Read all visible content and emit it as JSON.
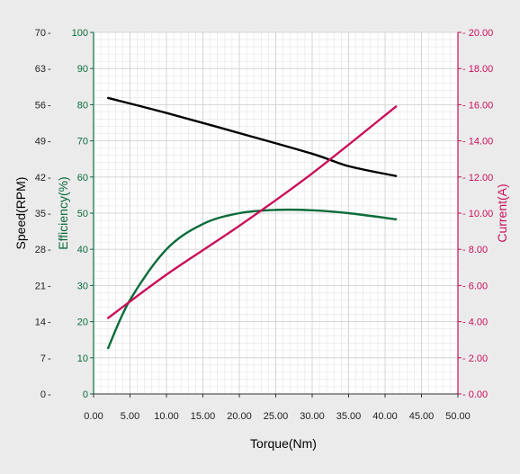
{
  "chart_data": {
    "type": "line",
    "title": "",
    "xlabel": "Torque(Nm)",
    "xlim": [
      0,
      50
    ],
    "x_ticks": [
      "0.00",
      "5.00",
      "10.00",
      "15.00",
      "20.00",
      "25.00",
      "30.00",
      "35.00",
      "40.00",
      "45.00",
      "50.00"
    ],
    "grid": true,
    "legend": "none",
    "axes": {
      "speed": {
        "label": "Speed(RPM)",
        "color": "#000000",
        "ylim": [
          0,
          70
        ],
        "ticks": [
          "0",
          "7",
          "14",
          "21",
          "28",
          "35",
          "42",
          "49",
          "56",
          "63",
          "70"
        ]
      },
      "efficiency": {
        "label": "Efficiency(%)",
        "color": "#0b6b3a",
        "ylim": [
          0,
          100
        ],
        "ticks": [
          "0",
          "10",
          "20",
          "30",
          "40",
          "50",
          "60",
          "70",
          "80",
          "90",
          "100"
        ]
      },
      "current": {
        "label": "Current(A)",
        "color": "#c8105a",
        "ylim": [
          0,
          20
        ],
        "ticks": [
          "0.00",
          "2.00",
          "4.00",
          "6.00",
          "8.00",
          "10.00",
          "12.00",
          "14.00",
          "16.00",
          "18.00",
          "20.00"
        ]
      }
    },
    "series": [
      {
        "axis": "speed",
        "color": "#000000",
        "x": [
          2,
          10,
          20,
          30,
          35,
          41.5
        ],
        "y": [
          57.3,
          54.4,
          50.5,
          46.5,
          44.1,
          42.2
        ]
      },
      {
        "axis": "efficiency",
        "color": "#0b6b3a",
        "x": [
          2,
          5,
          10,
          15,
          20,
          25,
          30,
          35,
          41.5
        ],
        "y": [
          12.7,
          26,
          40,
          47,
          50,
          50.9,
          50.8,
          50,
          48.3
        ]
      },
      {
        "axis": "current",
        "color": "#c8105a",
        "x": [
          2,
          10,
          20,
          30,
          41.5
        ],
        "y": [
          4.2,
          6.6,
          9.3,
          12.2,
          15.9
        ]
      }
    ]
  }
}
